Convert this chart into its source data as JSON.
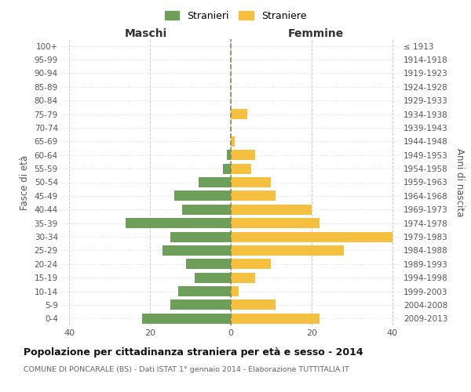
{
  "age_groups": [
    "0-4",
    "5-9",
    "10-14",
    "15-19",
    "20-24",
    "25-29",
    "30-34",
    "35-39",
    "40-44",
    "45-49",
    "50-54",
    "55-59",
    "60-64",
    "65-69",
    "70-74",
    "75-79",
    "80-84",
    "85-89",
    "90-94",
    "95-99",
    "100+"
  ],
  "birth_years": [
    "2009-2013",
    "2004-2008",
    "1999-2003",
    "1994-1998",
    "1989-1993",
    "1984-1988",
    "1979-1983",
    "1974-1978",
    "1969-1973",
    "1964-1968",
    "1959-1963",
    "1954-1958",
    "1949-1953",
    "1944-1948",
    "1939-1943",
    "1934-1938",
    "1929-1933",
    "1924-1928",
    "1919-1923",
    "1914-1918",
    "≤ 1913"
  ],
  "maschi": [
    22,
    15,
    13,
    9,
    11,
    17,
    15,
    26,
    12,
    14,
    8,
    2,
    1,
    0,
    0,
    0,
    0,
    0,
    0,
    0,
    0
  ],
  "femmine": [
    22,
    11,
    2,
    6,
    10,
    28,
    40,
    22,
    20,
    11,
    10,
    5,
    6,
    1,
    0,
    4,
    0,
    0,
    0,
    0,
    0
  ],
  "color_maschi": "#6d9e5a",
  "color_femmine": "#f5c040",
  "title": "Popolazione per cittadinanza straniera per età e sesso - 2014",
  "subtitle": "COMUNE DI PONCARALE (BS) - Dati ISTAT 1° gennaio 2014 - Elaborazione TUTTITALIA.IT",
  "label_maschi": "Maschi",
  "label_femmine": "Femmine",
  "ylabel_left": "Fasce di età",
  "ylabel_right": "Anni di nascita",
  "legend_maschi": "Stranieri",
  "legend_femmine": "Straniere",
  "xlim": 42,
  "background_color": "#ffffff",
  "grid_color": "#cccccc"
}
